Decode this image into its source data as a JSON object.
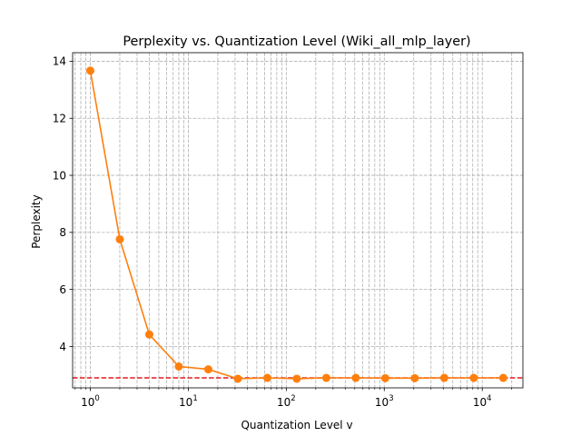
{
  "chart_data": {
    "type": "line",
    "title": "Perplexity vs. Quantization Level (Wiki_all_mlp_layer)",
    "xlabel": "Quantization Level v",
    "ylabel": "Perplexity",
    "x_scale": "log",
    "xlim": [
      0.66,
      26000
    ],
    "ylim": [
      2.55,
      14.3
    ],
    "x_ticks": [
      1,
      10,
      100,
      1000,
      10000
    ],
    "x_tick_labels": [
      {
        "base": "10",
        "exp": "0"
      },
      {
        "base": "10",
        "exp": "1"
      },
      {
        "base": "10",
        "exp": "2"
      },
      {
        "base": "10",
        "exp": "3"
      },
      {
        "base": "10",
        "exp": "4"
      }
    ],
    "y_ticks": [
      4,
      6,
      8,
      10,
      12,
      14
    ],
    "y_tick_labels": [
      "4",
      "6",
      "8",
      "10",
      "12",
      "14"
    ],
    "grid": true,
    "series": [
      {
        "color": "#ff7f0e",
        "marker": "circle",
        "x": [
          1,
          2,
          4,
          8,
          16,
          32,
          64,
          128,
          256,
          512,
          1024,
          2048,
          4096,
          8192,
          16384
        ],
        "y": [
          13.67,
          7.76,
          4.42,
          3.3,
          3.2,
          2.87,
          2.9,
          2.87,
          2.9,
          2.9,
          2.89,
          2.89,
          2.9,
          2.9,
          2.9
        ]
      }
    ],
    "reference_line": {
      "y": 2.9,
      "color": "#e31a1c",
      "style": "dashed"
    }
  }
}
